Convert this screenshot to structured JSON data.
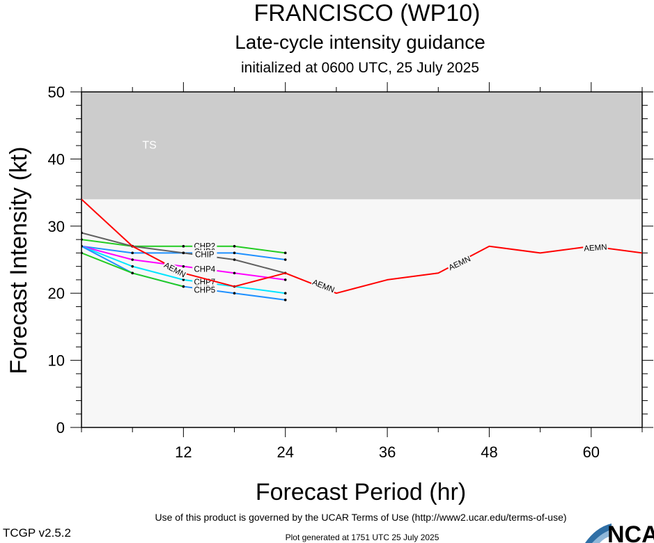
{
  "title": "FRANCISCO (WP10)",
  "subtitle": "Late-cycle intensity guidance",
  "init_text": "initialized at 0600 UTC, 25 July 2025",
  "footer": {
    "terms": "Use of this product is governed by the UCAR Terms of Use (http://www2.ucar.edu/terms-of-use)",
    "version": "TCGP v2.5.2",
    "generated": "Plot generated at 1751 UTC   25 July 2025",
    "logo": "NCAR"
  },
  "chart_data": {
    "type": "line",
    "title": "FRANCISCO (WP10)",
    "xlabel": "Forecast Period (hr)",
    "ylabel": "Forecast Intensity (kt)",
    "xlim": [
      0,
      66
    ],
    "ylim": [
      0,
      50
    ],
    "xticks": [
      12,
      24,
      36,
      48,
      60
    ],
    "yticks": [
      0,
      10,
      20,
      30,
      40,
      50
    ],
    "grid": false,
    "background": "#f7f7f7",
    "bands": [
      {
        "label": "TS",
        "y0": 34,
        "y1": 50,
        "color": "#cccccc",
        "label_x": 8,
        "label_y": 42
      }
    ],
    "series": [
      {
        "name": "AEMN",
        "color": "#ff0000",
        "width": 2,
        "dots": false,
        "x": [
          0,
          6,
          12,
          18,
          24,
          30,
          36,
          42,
          48,
          54,
          60,
          66
        ],
        "y": [
          34,
          27,
          23,
          21,
          23,
          20,
          22,
          23,
          27,
          26,
          27,
          26
        ],
        "labels": [
          {
            "x": 11,
            "y": 23.5,
            "angle": 28
          },
          {
            "x": 28.5,
            "y": 21.1,
            "angle": 22
          },
          {
            "x": 44.5,
            "y": 24.5,
            "angle": -25
          },
          {
            "x": 60.5,
            "y": 26.8,
            "angle": -4
          }
        ]
      },
      {
        "name": "CHP2",
        "color": "#22cc22",
        "width": 2,
        "dots": true,
        "x": [
          0,
          6,
          12,
          18,
          24
        ],
        "y": [
          28,
          27,
          27,
          27,
          26
        ],
        "labels": [
          {
            "x": 14.5,
            "y": 27.0,
            "angle": 0
          }
        ]
      },
      {
        "name": "CHP6",
        "color": "#1e90ff",
        "width": 2,
        "dots": true,
        "x": [
          0,
          6,
          12,
          18,
          24
        ],
        "y": [
          27,
          26,
          26,
          26,
          25
        ],
        "labels": [
          {
            "x": 14.5,
            "y": 26.2,
            "angle": 0
          }
        ]
      },
      {
        "name": "CHIP",
        "color": "#606060",
        "width": 2,
        "dots": true,
        "x": [
          0,
          6,
          12,
          18,
          24
        ],
        "y": [
          29,
          27,
          26,
          25,
          23
        ],
        "labels": [
          {
            "x": 14.5,
            "y": 25.8,
            "angle": 0
          }
        ]
      },
      {
        "name": "CHP4",
        "color": "#ff00ff",
        "width": 2,
        "dots": true,
        "x": [
          0,
          6,
          12,
          18,
          24
        ],
        "y": [
          27,
          25,
          24,
          23,
          22
        ],
        "labels": [
          {
            "x": 14.5,
            "y": 23.6,
            "angle": 0
          }
        ]
      },
      {
        "name": "CHP7",
        "color": "#00e5ff",
        "width": 2,
        "dots": true,
        "x": [
          0,
          6,
          12,
          18,
          24
        ],
        "y": [
          27,
          24,
          22,
          21,
          20
        ],
        "labels": [
          {
            "x": 14.5,
            "y": 21.7,
            "angle": 0
          }
        ]
      },
      {
        "name": "CHP3",
        "color": "#1e90ff",
        "width": 2,
        "dots": true,
        "x": [
          0,
          6,
          12,
          18,
          24
        ],
        "y": [
          27,
          23,
          21,
          20,
          19
        ],
        "labels": [
          {
            "x": 14.5,
            "y": 20.7,
            "angle": 0
          }
        ]
      },
      {
        "name": "CHP5",
        "color": "#22cc22",
        "width": 2,
        "dots": true,
        "x": [
          0,
          6,
          12
        ],
        "y": [
          26,
          23,
          21
        ],
        "labels": [
          {
            "x": 14.5,
            "y": 20.5,
            "angle": 0
          }
        ]
      }
    ]
  }
}
